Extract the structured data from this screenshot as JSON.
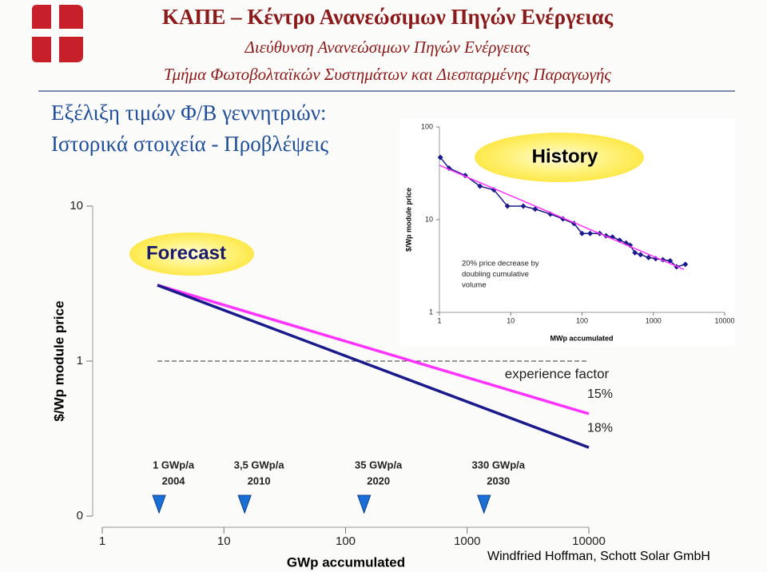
{
  "header": {
    "title": "ΚΑΠΕ – Κέντρο Ανανεώσιμων Πηγών Ενέργειας",
    "department": "Διεύθυνση Ανανεώσιμων Πηγών Ενέργειας",
    "section": "Τμήμα Φωτοβολταϊκών Συστημάτων και Διεσπαρμένης Παραγωγής"
  },
  "slide_title": [
    "Εξέλιξη τιμών Φ/Β γεννητριών:",
    "Ιστορικά στοιχεία - Προβλέψεις"
  ],
  "footer": "Windfried Hoffman, Schott Solar GmbH",
  "chart_data": [
    {
      "type": "line",
      "title": "History",
      "x_label": "MWp accumulated",
      "y_label": "$/Wp module price",
      "xlog": true,
      "ylog": true,
      "xlim": [
        1,
        10000
      ],
      "ylim": [
        1,
        100
      ],
      "xticks": [
        1,
        10,
        100,
        1000,
        10000
      ],
      "yticks": [
        1,
        10,
        100
      ],
      "annotation": [
        "20% price decrease by",
        "doubling cumulative",
        "volume"
      ],
      "series": [
        {
          "color": "#1a1a8c",
          "marker": "diamond",
          "x": [
            1.03,
            1.36,
            2.3,
            3.7,
            5.8,
            9,
            15,
            22,
            36,
            54,
            77,
            100,
            130,
            177,
            217,
            267,
            337,
            415,
            472,
            552,
            661,
            857,
            1080,
            1360,
            1720,
            2120,
            2810
          ],
          "values": [
            47,
            36,
            30,
            23,
            21,
            14,
            14,
            13,
            11.5,
            10.2,
            9.1,
            7.1,
            7.1,
            7.1,
            6.7,
            6.5,
            6.0,
            5.6,
            5.3,
            4.4,
            4.2,
            3.9,
            3.8,
            3.7,
            3.6,
            3.1,
            3.3
          ]
        },
        {
          "color": "#ff33ff",
          "x": [
            1,
            2700
          ],
          "values": [
            38.6,
            2.9
          ]
        }
      ]
    },
    {
      "type": "line",
      "title": "Forecast",
      "x_label": "GWp accumulated",
      "y_label": "$/Wp module price",
      "xlog": true,
      "ylog": true,
      "xlim": [
        1,
        10000
      ],
      "ylim": [
        0.1,
        10
      ],
      "xticks": [
        1,
        10,
        100,
        1000,
        10000
      ],
      "yticks": [
        {
          "value": 0.1,
          "label": "0"
        },
        1,
        10
      ],
      "reference_line": 1,
      "annotation": "experience factor",
      "x": [
        2.84,
        10000
      ],
      "series": [
        {
          "color": "#ff33ff",
          "values": [
            3.09,
            0.457
          ],
          "label": "15%"
        },
        {
          "color": "#1a1a8c",
          "values": [
            3.09,
            0.277
          ],
          "label": "18%"
        }
      ],
      "milestones": [
        {
          "x": 2.93,
          "label": "1 GWp/a",
          "year": "2004"
        },
        {
          "x": 14.8,
          "label": "3,5 GWp/a",
          "year": "2010"
        },
        {
          "x": 142,
          "label": "35 GWp/a",
          "year": "2020"
        },
        {
          "x": 1374,
          "label": "330 GWp/a",
          "year": "2030"
        }
      ]
    }
  ]
}
